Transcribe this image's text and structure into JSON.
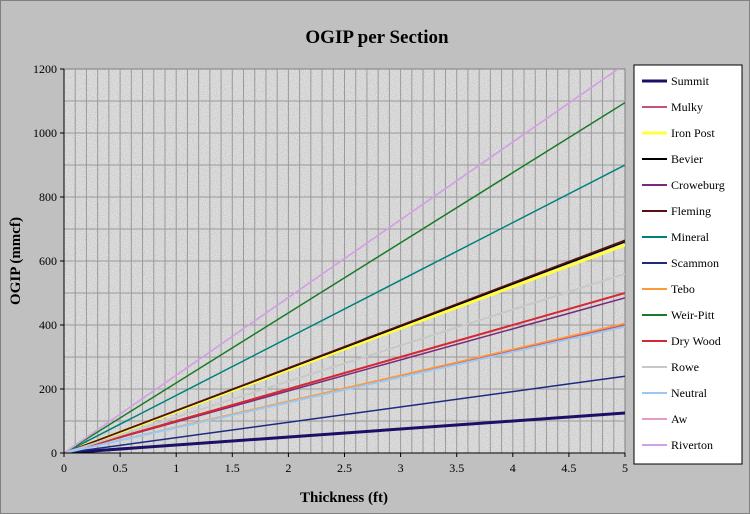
{
  "chart_data": {
    "type": "line",
    "title": "OGIP per Section",
    "xlabel": "Thickness (ft)",
    "ylabel": "OGIP (mmcf)",
    "xlim": [
      0,
      5
    ],
    "ylim": [
      0,
      1200
    ],
    "x_ticks": [
      "0",
      "0.5",
      "1",
      "1.5",
      "2",
      "2.5",
      "3",
      "3.5",
      "4",
      "4.5",
      "5"
    ],
    "y_ticks": [
      "0",
      "200",
      "400",
      "600",
      "800",
      "1000",
      "1200"
    ],
    "grid": true,
    "legend_position": "right",
    "x": [
      0,
      5
    ],
    "series": [
      {
        "name": "Summit",
        "values": [
          0,
          125
        ],
        "color": "#1a1066",
        "width": 3
      },
      {
        "name": "Mulky",
        "values": [
          0,
          400
        ],
        "color": "#c8507a",
        "width": 1.5
      },
      {
        "name": "Iron Post",
        "values": [
          0,
          650
        ],
        "color": "#ffff40",
        "width": 3
      },
      {
        "name": "Bevier",
        "values": [
          0,
          660
        ],
        "color": "#000000",
        "width": 1.5
      },
      {
        "name": "Croweburg",
        "values": [
          0,
          485
        ],
        "color": "#7b2a7b",
        "width": 1.5
      },
      {
        "name": "Fleming",
        "values": [
          0,
          665
        ],
        "color": "#5a1010",
        "width": 1.5
      },
      {
        "name": "Mineral",
        "values": [
          0,
          900
        ],
        "color": "#00807d",
        "width": 1.5
      },
      {
        "name": "Scammon",
        "values": [
          0,
          240
        ],
        "color": "#1c2a80",
        "width": 1.5
      },
      {
        "name": "Tebo",
        "values": [
          0,
          405
        ],
        "color": "#ff9933",
        "width": 1.5
      },
      {
        "name": "Weir-Pitt",
        "values": [
          0,
          1095
        ],
        "color": "#1a7a28",
        "width": 1.5
      },
      {
        "name": "Dry Wood",
        "values": [
          0,
          500
        ],
        "color": "#d42832",
        "width": 2
      },
      {
        "name": "Rowe",
        "values": [
          0,
          560
        ],
        "color": "#c8c8c8",
        "width": 2
      },
      {
        "name": "Neutral",
        "values": [
          0,
          395
        ],
        "color": "#9cc8f0",
        "width": 2
      },
      {
        "name": "Aw",
        "values": [
          0,
          1215
        ],
        "color": "#e69ac8",
        "width": 1.5
      },
      {
        "name": "Riverton",
        "values": [
          0,
          1215
        ],
        "color": "#d2a0e6",
        "width": 1.5
      }
    ]
  }
}
